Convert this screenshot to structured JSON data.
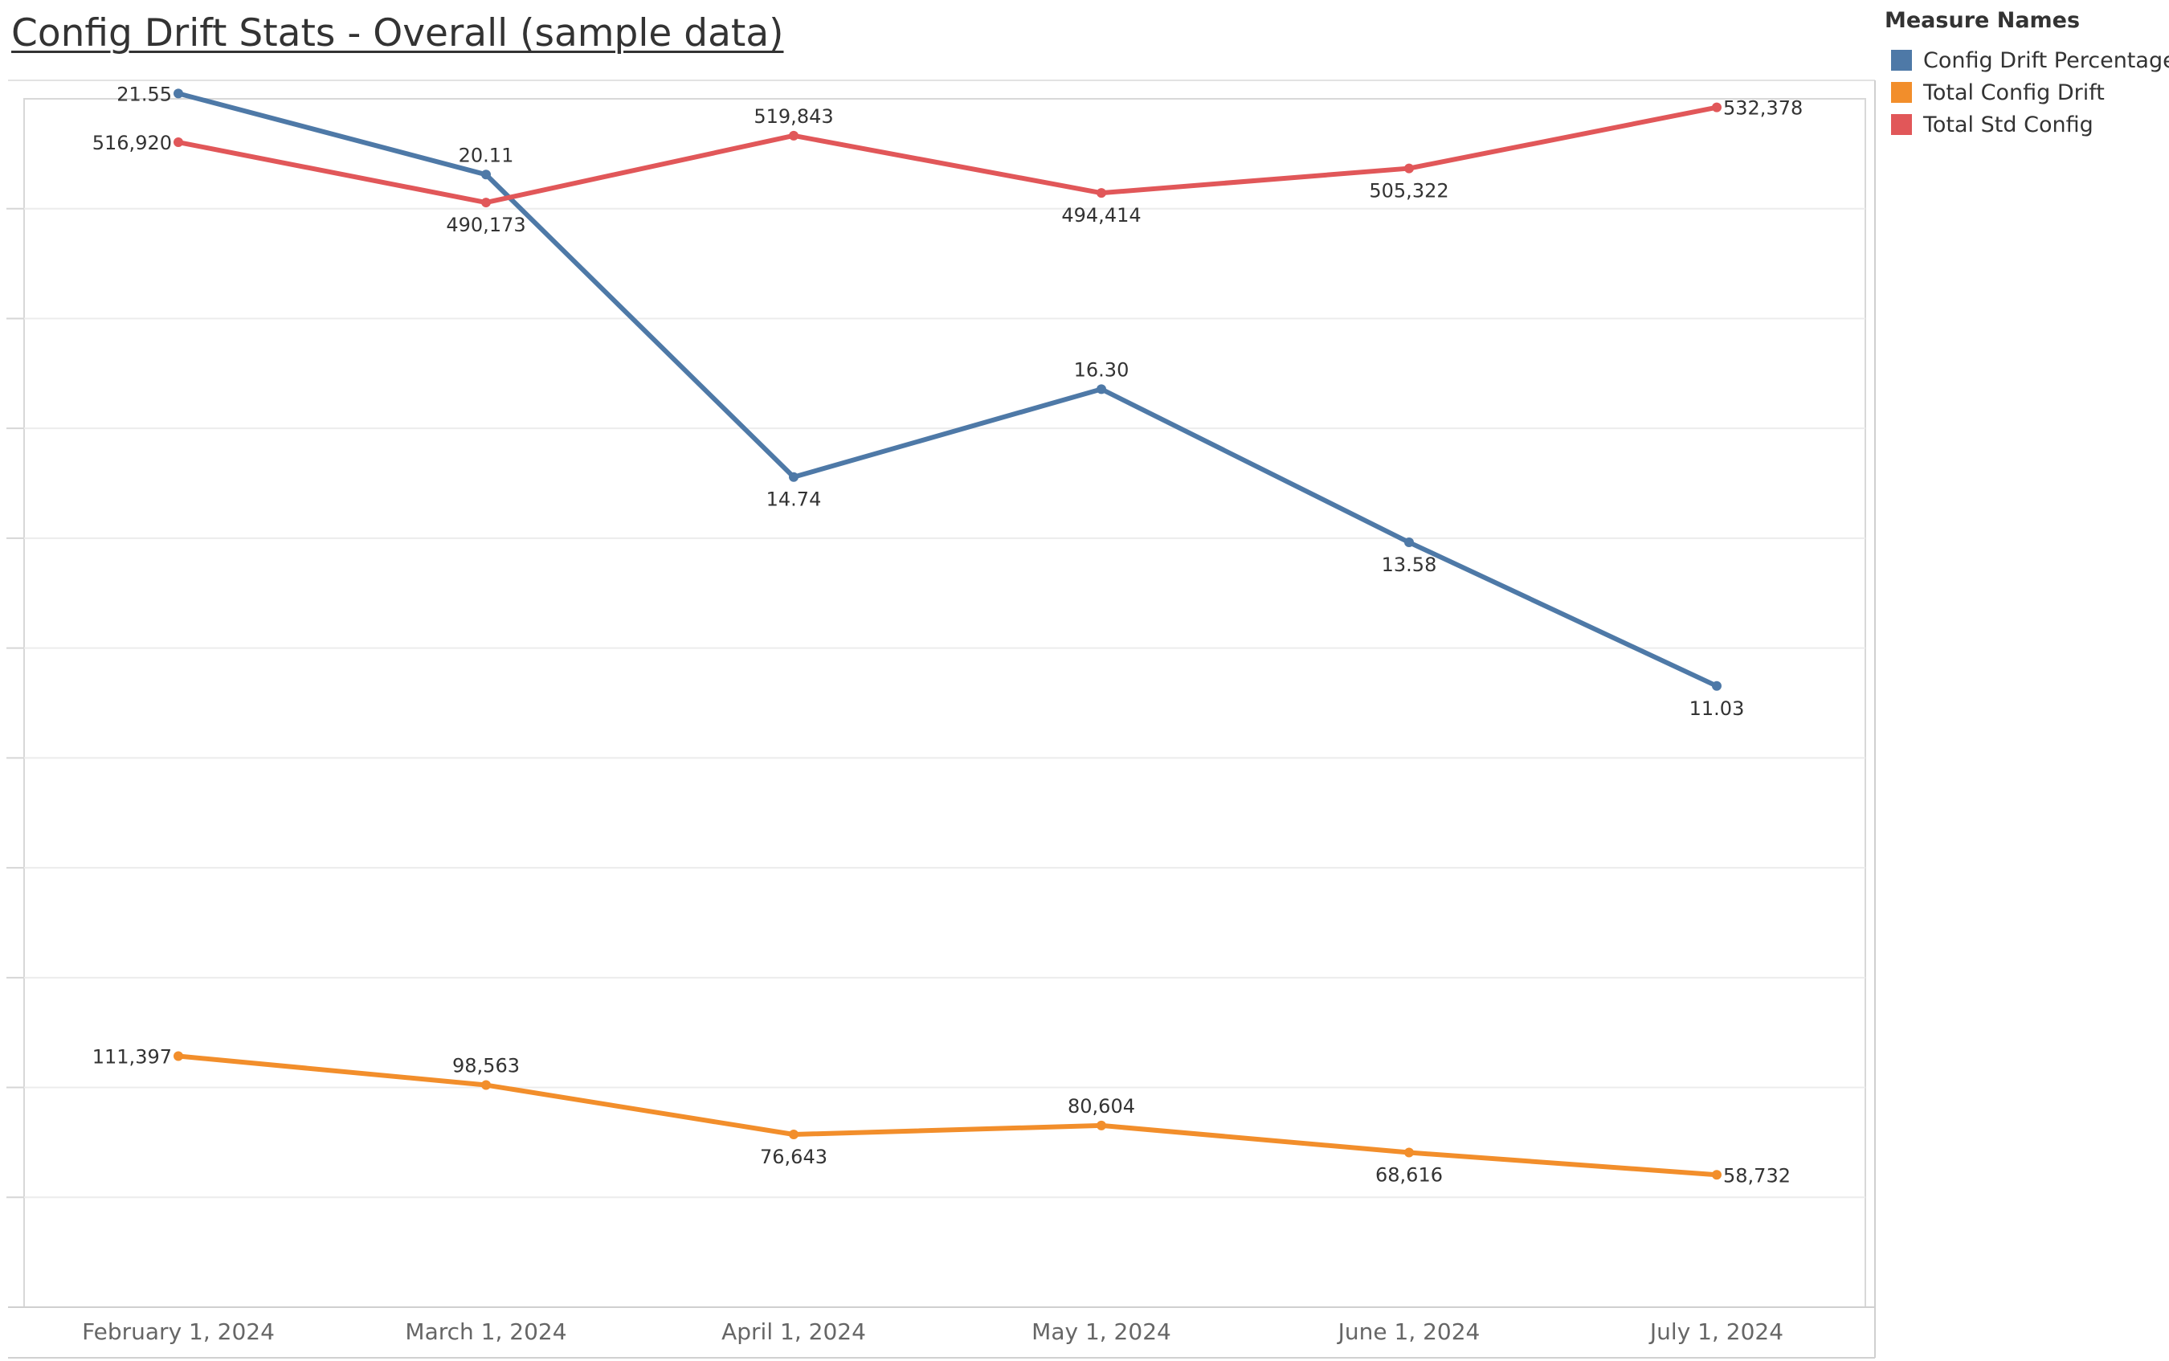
{
  "title": "Config Drift Stats - Overall (sample data)",
  "legend": {
    "title": "Measure Names",
    "items": [
      {
        "label": "Config Drift Percentage",
        "color": "#4e79a7"
      },
      {
        "label": "Total Config Drift",
        "color": "#f28e2b"
      },
      {
        "label": "Total Std Config",
        "color": "#e15759"
      }
    ]
  },
  "chart_data": {
    "type": "line",
    "title": "Config Drift Stats - Overall (sample data)",
    "xlabel": "",
    "ylabel": "",
    "categories": [
      "February 1, 2024",
      "March 1, 2024",
      "April 1, 2024",
      "May 1, 2024",
      "June 1, 2024",
      "July 1, 2024"
    ],
    "grid": true,
    "legend_position": "right",
    "series": [
      {
        "name": "Config Drift Percentage",
        "color": "#4e79a7",
        "values": [
          21.55,
          20.11,
          14.74,
          16.3,
          13.58,
          11.03
        ],
        "labels": [
          "21.55",
          "20.11",
          "14.74",
          "16.30",
          "13.58",
          "11.03"
        ]
      },
      {
        "name": "Total Config Drift",
        "color": "#f28e2b",
        "values": [
          111397,
          98563,
          76643,
          80604,
          68616,
          58732
        ],
        "labels": [
          "111,397",
          "98,563",
          "76,643",
          "80,604",
          "68,616",
          "58,732"
        ]
      },
      {
        "name": "Total Std Config",
        "color": "#e15759",
        "values": [
          516920,
          490173,
          519843,
          494414,
          505322,
          532378
        ],
        "labels": [
          "516,920",
          "490,173",
          "519,843",
          "494,414",
          "505,322",
          "532,378"
        ]
      }
    ]
  }
}
